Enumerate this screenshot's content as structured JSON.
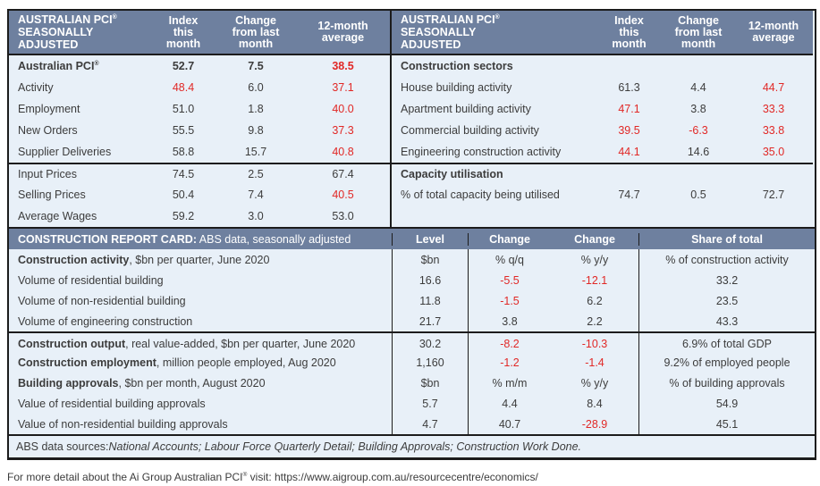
{
  "colors": {
    "header_bg": "#6e809f",
    "row_bg": "#e8f0f8",
    "negative_red": "#e12826",
    "text": "#3c3c3c",
    "border": "#1c1c1c"
  },
  "top_left": {
    "title_lines": [
      "AUSTRALIAN PCI®",
      "SEASONALLY",
      "ADJUSTED"
    ],
    "col_headers": [
      [
        "Index",
        "this",
        "month"
      ],
      [
        "Change",
        "from last",
        "month"
      ],
      [
        "12-month",
        "average"
      ]
    ],
    "rows": [
      {
        "label": "Australian PCI®",
        "bold": true,
        "values": [
          "52.7",
          "7.5",
          "38.5"
        ],
        "red": [
          false,
          false,
          true
        ]
      },
      {
        "label": "Activity",
        "values": [
          "48.4",
          "6.0",
          "37.1"
        ],
        "red": [
          true,
          false,
          true
        ]
      },
      {
        "label": "Employment",
        "values": [
          "51.0",
          "1.8",
          "40.0"
        ],
        "red": [
          false,
          false,
          true
        ]
      },
      {
        "label": "New Orders",
        "values": [
          "55.5",
          "9.8",
          "37.3"
        ],
        "red": [
          false,
          false,
          true
        ]
      },
      {
        "label": "Supplier Deliveries",
        "values": [
          "58.8",
          "15.7",
          "40.8"
        ],
        "red": [
          false,
          false,
          true
        ]
      },
      {
        "label": "Input Prices",
        "values": [
          "74.5",
          "2.5",
          "67.4"
        ],
        "red": [
          false,
          false,
          false
        ],
        "group_start": true
      },
      {
        "label": "Selling Prices",
        "values": [
          "50.4",
          "7.4",
          "40.5"
        ],
        "red": [
          false,
          false,
          true
        ]
      },
      {
        "label": "Average Wages",
        "values": [
          "59.2",
          "3.0",
          "53.0"
        ],
        "red": [
          false,
          false,
          false
        ]
      }
    ]
  },
  "top_right": {
    "title_lines": [
      "AUSTRALIAN PCI®",
      "SEASONALLY",
      "ADJUSTED"
    ],
    "col_headers": [
      [
        "Index",
        "this",
        "month"
      ],
      [
        "Change",
        "from last",
        "month"
      ],
      [
        "12-month",
        "average"
      ]
    ],
    "rows": [
      {
        "label": "Construction sectors",
        "bold": true,
        "section": true
      },
      {
        "label": "House building activity",
        "values": [
          "61.3",
          "4.4",
          "44.7"
        ],
        "red": [
          false,
          false,
          true
        ]
      },
      {
        "label": "Apartment building activity",
        "values": [
          "47.1",
          "3.8",
          "33.3"
        ],
        "red": [
          true,
          false,
          true
        ]
      },
      {
        "label": "Commercial building activity",
        "values": [
          "39.5",
          "-6.3",
          "33.8"
        ],
        "red": [
          true,
          true,
          true
        ]
      },
      {
        "label": "Engineering construction activity",
        "values": [
          "44.1",
          "14.6",
          "35.0"
        ],
        "red": [
          true,
          false,
          true
        ]
      },
      {
        "label": "Capacity utilisation",
        "bold": true,
        "section": true,
        "group_start": true
      },
      {
        "label": "% of total capacity being utilised",
        "values": [
          "74.7",
          "0.5",
          "72.7"
        ],
        "red": [
          false,
          false,
          false
        ]
      }
    ]
  },
  "report_card": {
    "title_bold": "CONSTRUCTION REPORT CARD:",
    "title_rest": " ABS data, seasonally adjusted",
    "col_headers": [
      "Level",
      "Change",
      "Change",
      "Share of total"
    ],
    "rows": [
      {
        "label_bold": "Construction activity",
        "label_rest": ", $bn per quarter, June 2020",
        "values": [
          "$bn",
          "% q/q",
          "% y/y",
          "% of construction activity"
        ],
        "red": [
          false,
          false,
          false,
          false
        ]
      },
      {
        "label_bold": "",
        "label_rest": "Volume of residential building",
        "values": [
          "16.6",
          "-5.5",
          "-12.1",
          "33.2"
        ],
        "red": [
          false,
          true,
          true,
          false
        ]
      },
      {
        "label_bold": "",
        "label_rest": "Volume of non-residential building",
        "values": [
          "11.8",
          "-1.5",
          "6.2",
          "23.5"
        ],
        "red": [
          false,
          true,
          false,
          false
        ]
      },
      {
        "label_bold": "",
        "label_rest": "Volume of engineering construction",
        "values": [
          "21.7",
          "3.8",
          "2.2",
          "43.3"
        ],
        "red": [
          false,
          false,
          false,
          false
        ]
      },
      {
        "label_bold": "Construction output",
        "label_rest": ", real value-added, $bn per quarter, June 2020",
        "values": [
          "30.2",
          "-8.2",
          "-10.3",
          "6.9% of total GDP"
        ],
        "red": [
          false,
          true,
          true,
          false
        ],
        "group_start": true
      },
      {
        "label_bold": "Construction employment",
        "label_rest": ", million people employed, Aug 2020",
        "values": [
          "1,160",
          "-1.2",
          "-1.4",
          "9.2% of employed people"
        ],
        "red": [
          false,
          true,
          true,
          false
        ]
      },
      {
        "label_bold": "Building approvals",
        "label_rest": ", $bn per month, August 2020",
        "values": [
          "$bn",
          "% m/m",
          "% y/y",
          "% of building approvals"
        ],
        "red": [
          false,
          false,
          false,
          false
        ]
      },
      {
        "label_bold": "",
        "label_rest": "Value of residential building approvals",
        "values": [
          "5.7",
          "4.4",
          "8.4",
          "54.9"
        ],
        "red": [
          false,
          false,
          false,
          false
        ]
      },
      {
        "label_bold": "",
        "label_rest": "Value of non-residential building approvals",
        "values": [
          "4.7",
          "40.7",
          "-28.9",
          "45.1"
        ],
        "red": [
          false,
          false,
          true,
          false
        ]
      }
    ],
    "abs_prefix": "ABS data sources: ",
    "abs_sources": "National Accounts; Labour Force Quarterly Detail; Building Approvals; Construction Work Done."
  },
  "footer_note": "For more detail about the Ai Group Australian PCI® visit: https://www.aigroup.com.au/resourcecentre/economics/"
}
